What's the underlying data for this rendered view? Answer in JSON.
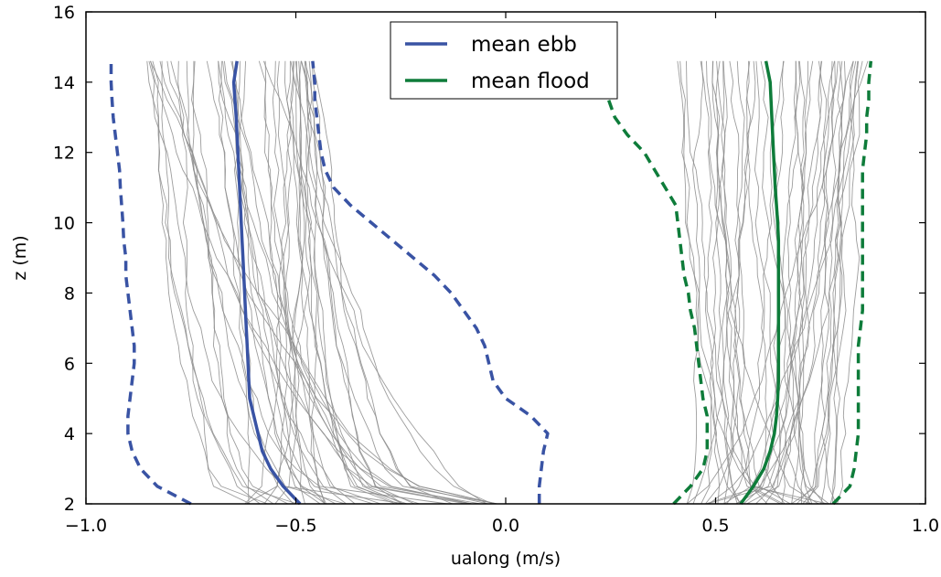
{
  "chart_data": {
    "type": "line",
    "title": "",
    "xlabel": "ualong (m/s)",
    "ylabel": "z (m)",
    "xlim": [
      -1.0,
      1.0
    ],
    "ylim": [
      2,
      16
    ],
    "xticks": [
      -1.0,
      -0.5,
      0.0,
      0.5,
      1.0
    ],
    "xtick_labels": [
      "−1.0",
      "−0.5",
      "0.0",
      "0.5",
      "1.0"
    ],
    "yticks": [
      2,
      4,
      6,
      8,
      10,
      12,
      14,
      16
    ],
    "ytick_labels": [
      "2",
      "4",
      "6",
      "8",
      "10",
      "12",
      "14",
      "16"
    ],
    "grid": false,
    "legend_position": "top-center",
    "z": [
      2.0,
      2.5,
      3.0,
      3.5,
      4.0,
      4.5,
      5.0,
      5.5,
      6.0,
      6.5,
      7.0,
      7.5,
      8.0,
      8.5,
      9.0,
      9.5,
      10.0,
      10.5,
      11.0,
      11.5,
      12.0,
      12.5,
      13.0,
      13.5,
      14.0,
      14.6
    ],
    "series": [
      {
        "name": "mean ebb",
        "color": "#3953a4",
        "style": "solid",
        "in_legend": true,
        "x": [
          -0.49,
          -0.53,
          -0.56,
          -0.58,
          -0.59,
          -0.6,
          -0.61,
          -0.612,
          -0.614,
          -0.616,
          -0.618,
          -0.62,
          -0.622,
          -0.624,
          -0.626,
          -0.628,
          -0.63,
          -0.632,
          -0.634,
          -0.636,
          -0.638,
          -0.64,
          -0.642,
          -0.645,
          -0.648,
          -0.64
        ]
      },
      {
        "name": "mean flood",
        "color": "#0e7c3a",
        "style": "solid",
        "in_legend": true,
        "x": [
          0.56,
          0.59,
          0.615,
          0.63,
          0.64,
          0.645,
          0.648,
          0.65,
          0.65,
          0.65,
          0.65,
          0.65,
          0.65,
          0.65,
          0.65,
          0.65,
          0.648,
          0.645,
          0.642,
          0.64,
          0.638,
          0.636,
          0.634,
          0.632,
          0.63,
          0.62
        ]
      },
      {
        "name": "",
        "color": "#3953a4",
        "style": "dashed",
        "in_legend": false,
        "x": [
          -0.75,
          -0.83,
          -0.87,
          -0.89,
          -0.9,
          -0.9,
          -0.895,
          -0.89,
          -0.885,
          -0.885,
          -0.89,
          -0.895,
          -0.9,
          -0.905,
          -0.905,
          -0.91,
          -0.912,
          -0.915,
          -0.918,
          -0.92,
          -0.925,
          -0.93,
          -0.935,
          -0.938,
          -0.94,
          -0.94
        ]
      },
      {
        "name": "",
        "color": "#3953a4",
        "style": "dashed",
        "in_legend": false,
        "x": [
          0.08,
          0.08,
          0.085,
          0.09,
          0.1,
          0.06,
          0.0,
          -0.03,
          -0.04,
          -0.05,
          -0.07,
          -0.1,
          -0.13,
          -0.17,
          -0.22,
          -0.27,
          -0.32,
          -0.37,
          -0.41,
          -0.43,
          -0.44,
          -0.445,
          -0.45,
          -0.455,
          -0.455,
          -0.46
        ]
      },
      {
        "name": "",
        "color": "#0e7c3a",
        "style": "dashed",
        "in_legend": false,
        "x": [
          0.4,
          0.44,
          0.47,
          0.48,
          0.48,
          0.48,
          0.47,
          0.465,
          0.46,
          0.455,
          0.45,
          0.44,
          0.435,
          0.425,
          0.42,
          0.415,
          0.41,
          0.405,
          0.38,
          0.355,
          0.33,
          0.29,
          0.26,
          0.245,
          0.24,
          0.24
        ]
      },
      {
        "name": "",
        "color": "#0e7c3a",
        "style": "dashed",
        "in_legend": false,
        "x": [
          0.78,
          0.82,
          0.83,
          0.835,
          0.84,
          0.84,
          0.84,
          0.84,
          0.84,
          0.84,
          0.845,
          0.85,
          0.85,
          0.85,
          0.85,
          0.85,
          0.85,
          0.85,
          0.85,
          0.85,
          0.855,
          0.86,
          0.86,
          0.865,
          0.865,
          0.87
        ]
      }
    ],
    "gray_profiles": {
      "color": "#8c8c8c",
      "description": "individual velocity profiles (unlabeled thin gray lines)",
      "ebb_count": 45,
      "flood_count": 45,
      "ebb_x_range_at_top": [
        -0.86,
        -0.43
      ],
      "flood_x_range_at_top": [
        0.4,
        0.86
      ],
      "ebb_x_range_at_bottom": [
        -0.62,
        -0.02
      ],
      "flood_x_range_at_bottom": [
        0.43,
        0.8
      ]
    },
    "legend": [
      {
        "label": "mean ebb",
        "color": "#3953a4"
      },
      {
        "label": "mean flood",
        "color": "#0e7c3a"
      }
    ]
  }
}
